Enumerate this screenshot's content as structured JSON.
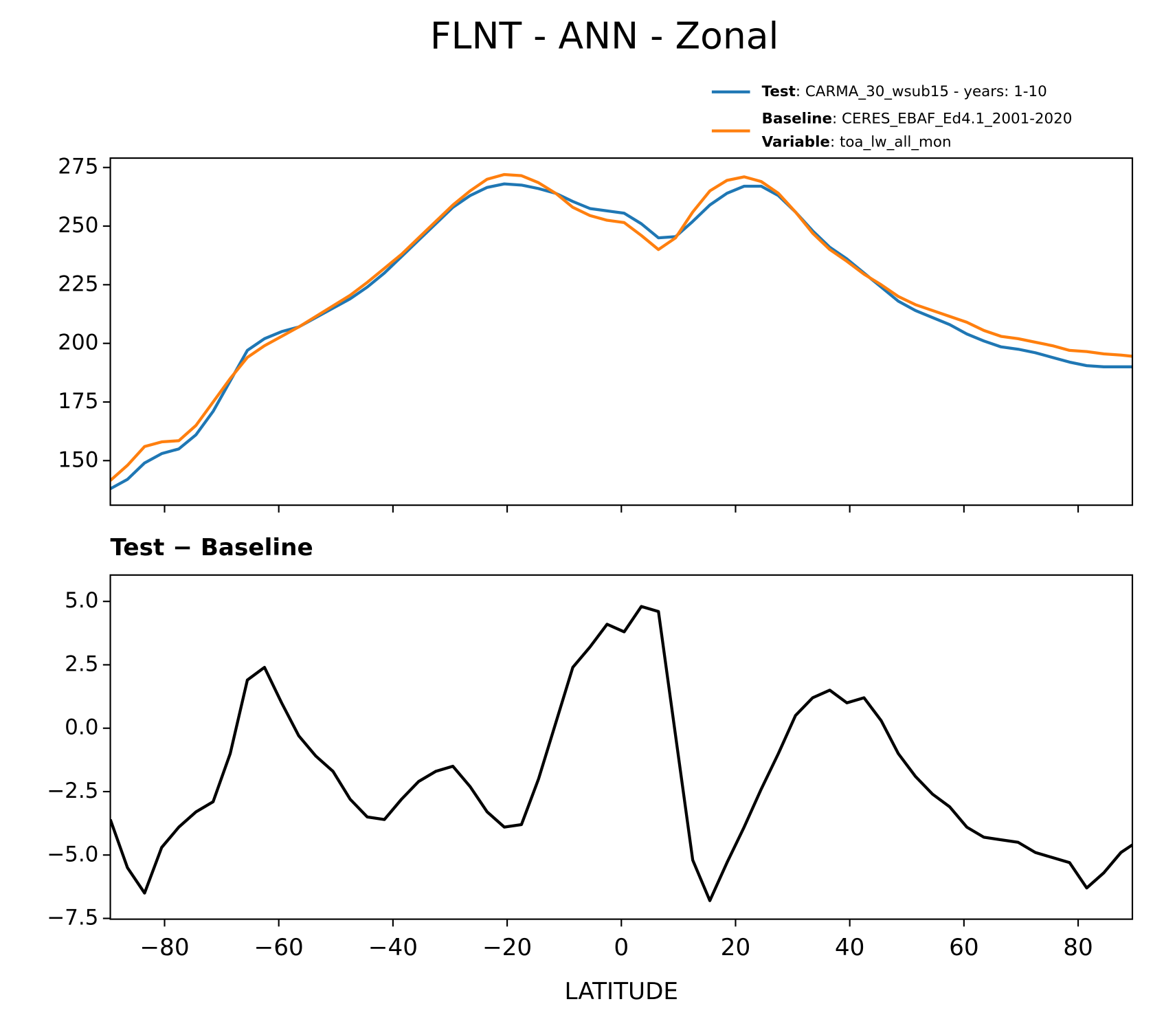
{
  "title": "FLNT - ANN - Zonal",
  "chart_data": [
    {
      "type": "line",
      "x": [
        -89.5,
        -86.5,
        -83.5,
        -80.5,
        -77.5,
        -74.5,
        -71.5,
        -68.5,
        -65.5,
        -62.5,
        -59.5,
        -56.5,
        -53.5,
        -50.5,
        -47.5,
        -44.5,
        -41.5,
        -38.5,
        -35.5,
        -32.5,
        -29.5,
        -26.5,
        -23.5,
        -20.5,
        -17.5,
        -14.5,
        -11.5,
        -8.5,
        -5.5,
        -2.5,
        0.5,
        3.5,
        6.5,
        9.5,
        12.5,
        15.5,
        18.5,
        21.5,
        24.5,
        27.5,
        30.5,
        33.5,
        36.5,
        39.5,
        42.5,
        45.5,
        48.5,
        51.5,
        54.5,
        57.5,
        60.5,
        63.5,
        66.5,
        69.5,
        72.5,
        75.5,
        78.5,
        81.5,
        84.5,
        87.5,
        89.5
      ],
      "series": [
        {
          "name": "Test",
          "desc": ": CARMA_30_wsub15 - years: 1-10",
          "color": "#1f77b4",
          "values": [
            138,
            142,
            149,
            153,
            155,
            161,
            171,
            184,
            197,
            202,
            205,
            207,
            211,
            215,
            219,
            224,
            230,
            237,
            244,
            251,
            258,
            263,
            266.5,
            268,
            267.5,
            266,
            264,
            260.5,
            257.5,
            256.5,
            255.5,
            251,
            245,
            245.5,
            252,
            259,
            264,
            267,
            267,
            263,
            256,
            248,
            241,
            236,
            230,
            224,
            218,
            214,
            211,
            208,
            204,
            201,
            198.5,
            197.5,
            196,
            194,
            192,
            190.5,
            190,
            190,
            190
          ]
        },
        {
          "name": "Baseline",
          "desc": ": CERES_EBAF_Ed4.1_2001-2020",
          "color": "#ff7f0e",
          "values": [
            141.5,
            148,
            156,
            158,
            158.5,
            165,
            175,
            185,
            194,
            199,
            203,
            207,
            211.5,
            216,
            220.5,
            226,
            232,
            238,
            245,
            252,
            259,
            265,
            270,
            272,
            271.5,
            268.5,
            264,
            258,
            254.5,
            252.5,
            251.5,
            246,
            240,
            245,
            256,
            265,
            269.5,
            271,
            269,
            264,
            256,
            247,
            240,
            235,
            229.5,
            225,
            220,
            216.5,
            214,
            211.5,
            209,
            205.5,
            203,
            202,
            200.5,
            199,
            197,
            196.5,
            195.5,
            195,
            194.5
          ]
        }
      ],
      "legend_extra": [
        {
          "key": "Variable",
          "text": ": toa_lw_all_mon"
        }
      ],
      "xlim": [
        -89.5,
        89.5
      ],
      "ylim": [
        131,
        279
      ],
      "xticks": [
        -80,
        -60,
        -40,
        -20,
        0,
        20,
        40,
        60,
        80
      ],
      "yticks": [
        150,
        175,
        200,
        225,
        250,
        275
      ]
    },
    {
      "type": "line",
      "title": "Test − Baseline",
      "xlabel": "LATITUDE",
      "x": [
        -89.5,
        -86.5,
        -83.5,
        -80.5,
        -77.5,
        -74.5,
        -71.5,
        -68.5,
        -65.5,
        -62.5,
        -59.5,
        -56.5,
        -53.5,
        -50.5,
        -47.5,
        -44.5,
        -41.5,
        -38.5,
        -35.5,
        -32.5,
        -29.5,
        -26.5,
        -23.5,
        -20.5,
        -17.5,
        -14.5,
        -11.5,
        -8.5,
        -5.5,
        -2.5,
        0.5,
        3.5,
        6.5,
        9.5,
        12.5,
        15.5,
        18.5,
        21.5,
        24.5,
        27.5,
        30.5,
        33.5,
        36.5,
        39.5,
        42.5,
        45.5,
        48.5,
        51.5,
        54.5,
        57.5,
        60.5,
        63.5,
        66.5,
        69.5,
        72.5,
        75.5,
        78.5,
        81.5,
        84.5,
        87.5,
        89.5
      ],
      "color": "#000000",
      "values": [
        -3.6,
        -5.5,
        -6.5,
        -4.7,
        -3.9,
        -3.3,
        -2.9,
        -1.0,
        1.9,
        2.4,
        1.0,
        -0.3,
        -1.1,
        -1.7,
        -2.8,
        -3.5,
        -3.6,
        -2.8,
        -2.1,
        -1.7,
        -1.5,
        -2.3,
        -3.3,
        -3.9,
        -3.8,
        -2.0,
        0.2,
        2.4,
        3.2,
        4.1,
        3.8,
        4.8,
        4.6,
        -0.3,
        -5.2,
        -6.8,
        -5.3,
        -3.9,
        -2.4,
        -1.0,
        0.5,
        1.2,
        1.5,
        1.0,
        1.2,
        0.3,
        -1.0,
        -1.9,
        -2.6,
        -3.1,
        -3.9,
        -4.3,
        -4.4,
        -4.5,
        -4.9,
        -5.1,
        -5.3,
        -6.3,
        -5.7,
        -4.9,
        -4.6
      ],
      "xlim": [
        -89.5,
        89.5
      ],
      "ylim": [
        -7.53,
        6.04
      ],
      "xticks": [
        {
          "value": -80,
          "label": "−80"
        },
        {
          "value": -60,
          "label": "−60"
        },
        {
          "value": -40,
          "label": "−40"
        },
        {
          "value": -20,
          "label": "−20"
        },
        0,
        20,
        40,
        60,
        80
      ],
      "yticks": [
        {
          "value": 5,
          "label": "5.0"
        },
        {
          "value": 2.5,
          "label": "2.5"
        },
        {
          "value": 0,
          "label": "0.0"
        },
        {
          "value": -2.5,
          "label": "−2.5"
        },
        {
          "value": -5,
          "label": "−5.0"
        },
        {
          "value": -7.5,
          "label": "−7.5"
        }
      ]
    }
  ]
}
